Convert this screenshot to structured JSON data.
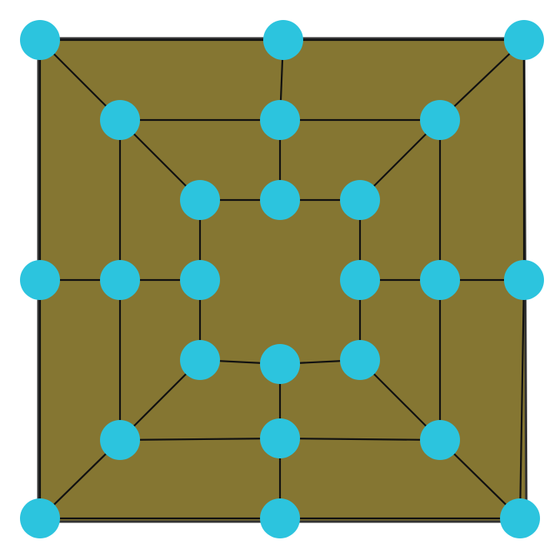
{
  "game": {
    "type": "nine-mens-morris-style board",
    "rings": 3,
    "points_per_ring": 8,
    "extra_diagonals": true
  },
  "colors": {
    "background": "#ffffff",
    "board_fill": "#857632",
    "board_border": "#333333",
    "line": "#111111",
    "point": "#2cc4de"
  },
  "points": [
    {
      "id": "a1"
    },
    {
      "id": "a2"
    },
    {
      "id": "a3"
    },
    {
      "id": "a4"
    },
    {
      "id": "a5"
    },
    {
      "id": "a6"
    },
    {
      "id": "a7"
    },
    {
      "id": "a8"
    },
    {
      "id": "b1"
    },
    {
      "id": "b2"
    },
    {
      "id": "b3"
    },
    {
      "id": "b4"
    },
    {
      "id": "b5"
    },
    {
      "id": "b6"
    },
    {
      "id": "b7"
    },
    {
      "id": "b8"
    },
    {
      "id": "c1"
    },
    {
      "id": "c2"
    },
    {
      "id": "c3"
    },
    {
      "id": "c4"
    },
    {
      "id": "c5"
    },
    {
      "id": "c6"
    },
    {
      "id": "c7"
    },
    {
      "id": "c8"
    }
  ]
}
